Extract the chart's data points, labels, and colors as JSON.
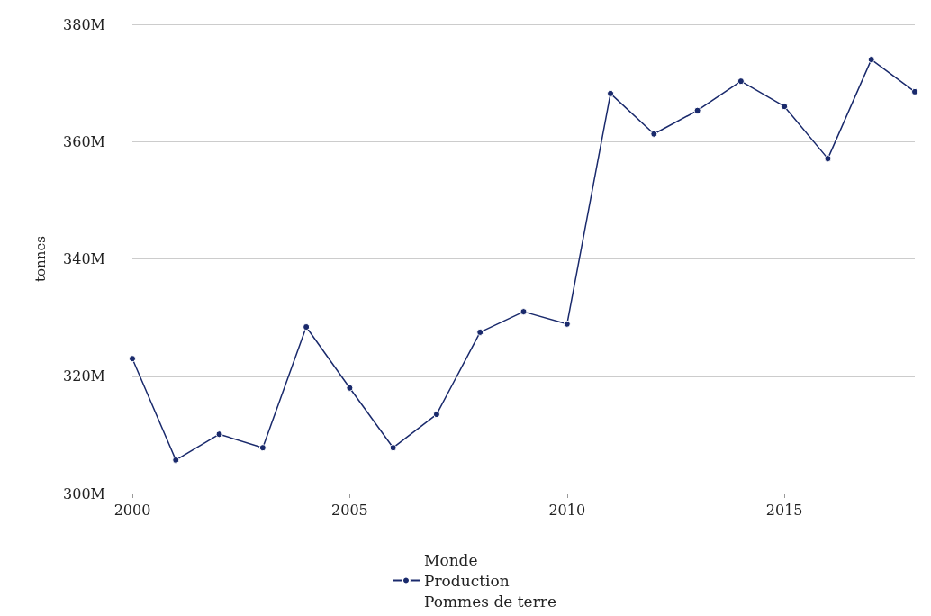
{
  "chart_data": {
    "type": "line",
    "ylabel": "tonnes",
    "x": [
      2000,
      2001,
      2002,
      2003,
      2004,
      2005,
      2006,
      2007,
      2008,
      2009,
      2010,
      2011,
      2012,
      2013,
      2014,
      2015,
      2016,
      2017,
      2018
    ],
    "series": [
      {
        "name": "Monde\nProduction\nPommes de terre",
        "color": "#1a2a6c",
        "values": [
          323,
          305.7,
          310.1,
          307.8,
          328.4,
          318,
          307.8,
          313.5,
          327.5,
          331,
          328.9,
          368.2,
          361.3,
          365.3,
          370.3,
          366,
          357.1,
          374,
          368.5
        ]
      }
    ],
    "xlim": [
      2000,
      2018
    ],
    "xticks": [
      2000,
      2005,
      2010,
      2015
    ],
    "ylim": [
      300,
      380
    ],
    "yticks": [
      {
        "value": 300,
        "label": "300M"
      },
      {
        "value": 320,
        "label": "320M"
      },
      {
        "value": 340,
        "label": "340M"
      },
      {
        "value": 360,
        "label": "360M"
      },
      {
        "value": 380,
        "label": "380M"
      }
    ],
    "grid": "y",
    "legend": "bottom",
    "marker": "circle",
    "line_style": "solid"
  }
}
